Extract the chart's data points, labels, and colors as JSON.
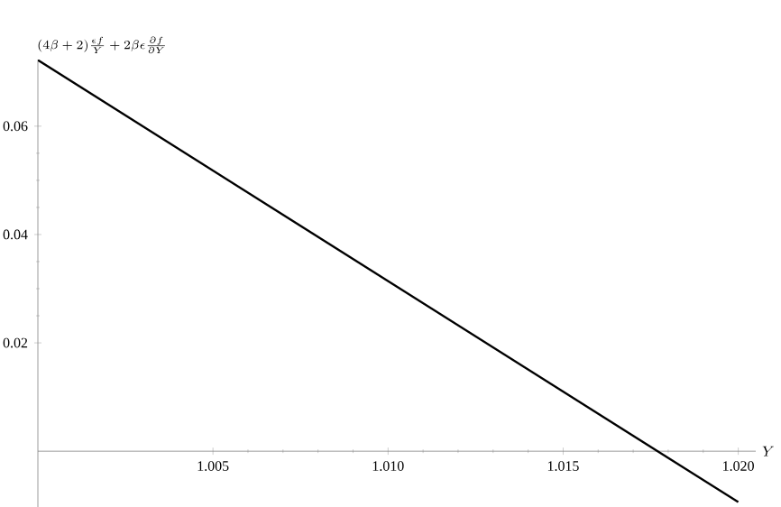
{
  "chart_data": {
    "type": "line",
    "ylabel": "(4\\beta+2)\\frac{\\epsilon f}{Y}+2\\beta\\epsilon\\frac{\\partial f}{\\partial Y}",
    "xlabel": "Y",
    "x": [
      1.0,
      1.02
    ],
    "series": [
      {
        "color": "#000000",
        "values": [
          0.0722,
          -0.0094
        ]
      }
    ],
    "xlim": [
      1.0,
      1.0205
    ],
    "ylim": [
      -0.0103,
      0.0723
    ],
    "xticks": [
      1.005,
      {
        "value": 1.01,
        "label": "1.010"
      },
      1.015,
      {
        "value": 1.02,
        "label": "1.020"
      }
    ],
    "yticks": [
      0.02,
      0.04,
      0.06
    ],
    "grid": false,
    "marker": "none",
    "line_style": "solid"
  }
}
